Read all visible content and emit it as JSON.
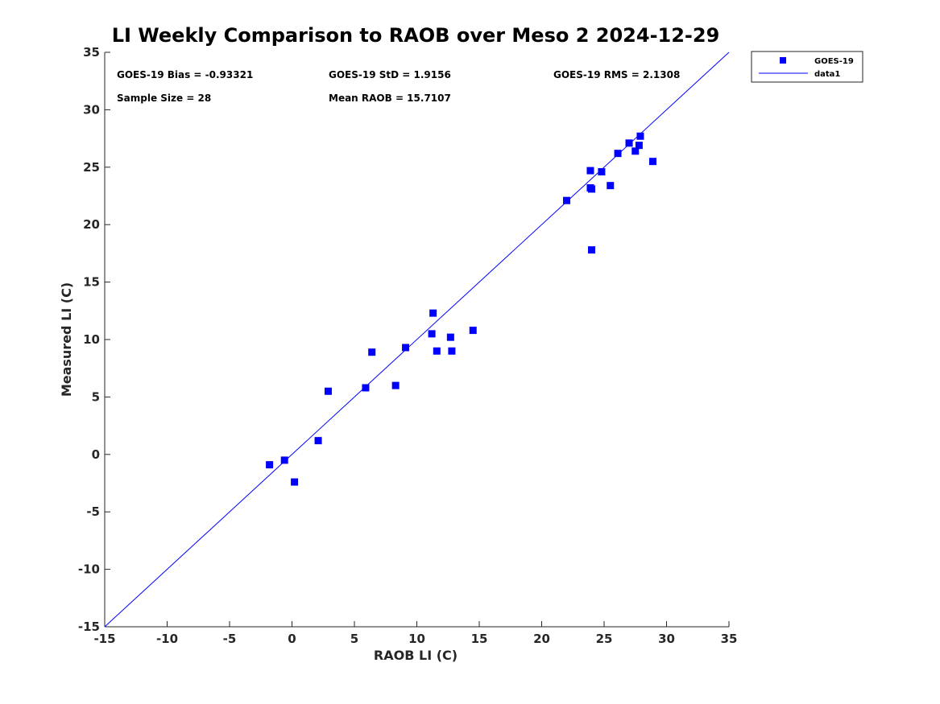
{
  "chart_data": {
    "type": "scatter",
    "title": "LI Weekly Comparison to RAOB over Meso 2 2024-12-29",
    "xlabel": "RAOB LI (C)",
    "ylabel": "Measured LI (C)",
    "xlim": [
      -15,
      35
    ],
    "ylim": [
      -15,
      35
    ],
    "xticks": [
      -15,
      -10,
      -5,
      0,
      5,
      10,
      15,
      20,
      25,
      30,
      35
    ],
    "yticks": [
      -15,
      -10,
      -5,
      0,
      5,
      10,
      15,
      20,
      25,
      30,
      35
    ],
    "grid": false,
    "legend_position": "outside-top-right",
    "series": [
      {
        "name": "GOES-19",
        "marker": "square",
        "color": "#0000ff",
        "points": [
          [
            -1.8,
            -0.9
          ],
          [
            -0.6,
            -0.5
          ],
          [
            0.2,
            -2.4
          ],
          [
            2.1,
            1.2
          ],
          [
            2.9,
            5.5
          ],
          [
            5.9,
            5.8
          ],
          [
            6.4,
            8.9
          ],
          [
            8.3,
            6.0
          ],
          [
            9.1,
            9.3
          ],
          [
            11.2,
            10.5
          ],
          [
            11.3,
            12.3
          ],
          [
            11.6,
            9.0
          ],
          [
            12.7,
            10.2
          ],
          [
            12.8,
            9.0
          ],
          [
            14.5,
            10.8
          ],
          [
            22.0,
            22.1
          ],
          [
            23.9,
            24.7
          ],
          [
            23.9,
            23.2
          ],
          [
            24.0,
            23.1
          ],
          [
            24.0,
            17.8
          ],
          [
            24.8,
            24.6
          ],
          [
            25.5,
            23.4
          ],
          [
            26.1,
            26.2
          ],
          [
            27.0,
            27.1
          ],
          [
            27.5,
            26.4
          ],
          [
            27.8,
            26.9
          ],
          [
            27.9,
            27.7
          ],
          [
            28.9,
            25.5
          ]
        ]
      },
      {
        "name": "data1",
        "type": "line",
        "color": "#0000ff",
        "x": [
          -15,
          35
        ],
        "y": [
          -15,
          35
        ]
      }
    ],
    "annotations": {
      "bias": "GOES-19 Bias = -0.93321",
      "std": "GOES-19 StD = 1.9156",
      "rms": "GOES-19 RMS = 2.1308",
      "sample_size": "Sample Size = 28",
      "mean_raob": "Mean RAOB = 15.7107"
    }
  }
}
